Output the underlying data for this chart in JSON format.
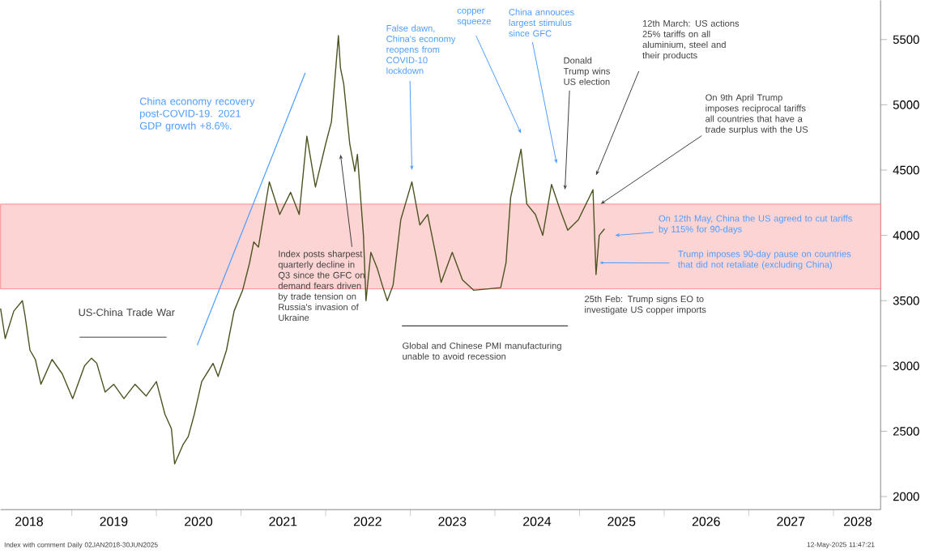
{
  "chart_data": {
    "type": "line",
    "x": [
      "2018-02-28",
      "2018-03-20",
      "2018-04-26",
      "2018-06-02",
      "2018-06-13",
      "2018-07-05",
      "2018-07-28",
      "2018-08-21",
      "2018-10-08",
      "2018-11-21",
      "2019-01-05",
      "2019-02-25",
      "2019-03-27",
      "2019-04-19",
      "2019-05-25",
      "2019-07-01",
      "2019-08-14",
      "2019-10-01",
      "2019-11-18",
      "2020-01-01",
      "2020-02-07",
      "2020-03-06",
      "2020-03-20",
      "2020-04-26",
      "2020-05-18",
      "2020-06-13",
      "2020-07-15",
      "2020-09-02",
      "2020-09-24",
      "2020-10-30",
      "2020-12-02",
      "2021-01-08",
      "2021-02-07",
      "2021-02-25",
      "2021-03-17",
      "2021-05-03",
      "2021-06-17",
      "2021-08-03",
      "2021-09-09",
      "2021-10-12",
      "2021-11-18",
      "2022-01-01",
      "2022-01-26",
      "2022-02-25",
      "2022-03-06",
      "2022-03-20",
      "2022-04-15",
      "2022-05-07",
      "2022-05-18",
      "2022-06-13",
      "2022-06-24",
      "2022-07-15",
      "2022-08-11",
      "2022-09-02",
      "2022-09-24",
      "2022-10-19",
      "2022-11-21",
      "2023-01-08",
      "2023-02-11",
      "2023-03-17",
      "2023-04-19",
      "2023-05-14",
      "2023-07-01",
      "2023-08-14",
      "2023-10-01",
      "2024-01-26",
      "2024-02-18",
      "2024-03-09",
      "2024-04-23",
      "2024-05-18",
      "2024-06-24",
      "2024-07-26",
      "2024-09-02",
      "2024-10-08",
      "2024-11-11",
      "2024-12-27",
      "2025-01-29",
      "2025-02-28",
      "2025-03-13",
      "2025-03-27",
      "2025-04-19"
    ],
    "series": [
      {
        "color": "#4b5320",
        "values": [
          3440,
          3210,
          3420,
          3500,
          3390,
          3120,
          3050,
          2860,
          3050,
          2940,
          2750,
          3000,
          3060,
          3020,
          2800,
          2860,
          2750,
          2860,
          2770,
          2880,
          2630,
          2520,
          2250,
          2400,
          2460,
          2630,
          2880,
          3020,
          2920,
          3120,
          3420,
          3580,
          3790,
          3950,
          3910,
          4410,
          4160,
          4330,
          4160,
          4760,
          4370,
          4700,
          4870,
          5530,
          5280,
          5160,
          4700,
          4490,
          4620,
          4000,
          3500,
          3870,
          3750,
          3620,
          3500,
          3620,
          4120,
          4410,
          4080,
          4160,
          3870,
          3640,
          3870,
          3660,
          3580,
          3600,
          3790,
          4290,
          4660,
          4240,
          4160,
          4000,
          4390,
          4200,
          4040,
          4120,
          4240,
          4350,
          3700,
          4000,
          4050
        ]
      }
    ],
    "xlim": [
      "2018-02-28",
      "2028-07-23"
    ],
    "ylim": [
      1900,
      5800
    ],
    "xticks": [
      {
        "value": "2018-07-01",
        "label": "2018"
      },
      {
        "value": "2019-07-01",
        "label": "2019"
      },
      {
        "value": "2020-07-01",
        "label": "2020"
      },
      {
        "value": "2021-07-01",
        "label": "2021"
      },
      {
        "value": "2022-07-01",
        "label": "2022"
      },
      {
        "value": "2023-07-01",
        "label": "2023"
      },
      {
        "value": "2024-07-01",
        "label": "2024"
      },
      {
        "value": "2025-07-01",
        "label": "2025"
      },
      {
        "value": "2026-07-01",
        "label": "2026"
      },
      {
        "value": "2027-07-01",
        "label": "2027"
      },
      {
        "value": "2028-04-15",
        "label": "2028"
      },
      {
        "value": "2019-01-01",
        "label": null
      },
      {
        "value": "2020-01-01",
        "label": null
      },
      {
        "value": "2021-01-01",
        "label": null
      },
      {
        "value": "2022-01-01",
        "label": null
      },
      {
        "value": "2023-01-01",
        "label": null
      },
      {
        "value": "2024-01-01",
        "label": null
      },
      {
        "value": "2025-01-01",
        "label": null
      },
      {
        "value": "2026-01-01",
        "label": null
      },
      {
        "value": "2027-01-01",
        "label": null
      },
      {
        "value": "2028-01-01",
        "label": null
      }
    ],
    "yticks": [
      2000,
      2500,
      3000,
      3500,
      4000,
      4500,
      5000,
      5500
    ],
    "bands": [
      {
        "axis": "y",
        "from": 3590,
        "to": 4240,
        "color": "#fcd4d4"
      }
    ],
    "annotations": [
      "China economy recovery post-COVID-19. 2021 GDP growth +8.6%.",
      "US-China Trade War",
      {
        "text": "Index posts sharpest quarterly decline in Q3 since the GFC on demand fears driven by trade tension on Russia's invasion of Ukraine",
        "x": "2022-03-06",
        "y": 4620
      },
      {
        "text": "False dawn, China's economy reopens from COVID-10 lockdown",
        "x": "2023-01-08",
        "y": 4500
      },
      {
        "text": "copper squeeze",
        "x": "2024-04-23",
        "y": 4780
      },
      {
        "text": "China annouces largest stimulus since GFC",
        "x": "2024-09-24",
        "y": 4550
      },
      {
        "text": "Donald Trump wins US election",
        "x": "2024-10-30",
        "y": 4350
      },
      {
        "text": "12th March: US actions 25% tariffs on all aluminium, steel and their products",
        "x": "2025-03-13",
        "y": 4460
      },
      {
        "text": "On 9th April Trump imposes reciprocal tariffs all countries that have a trade surplus with the US",
        "x": "2025-04-02",
        "y": 4240
      },
      {
        "text": "On 12th May, China the US agreed to cut tariffs by 115% for 90-days",
        "x": "2025-06-03",
        "y": 4000
      },
      {
        "text": "Trump imposes 90-day pause on countries that did not retaliate (excluding China)",
        "x": "2025-03-27",
        "y": 3790
      },
      "25th Feb: Trump signs EO to investigate US copper imports",
      "Global and Chinese PMI manufacturing unable to avoid recession",
      "Index with comment Daily 02JAN2018-30JUN2025",
      "12-May-2025 11:47:21"
    ]
  }
}
